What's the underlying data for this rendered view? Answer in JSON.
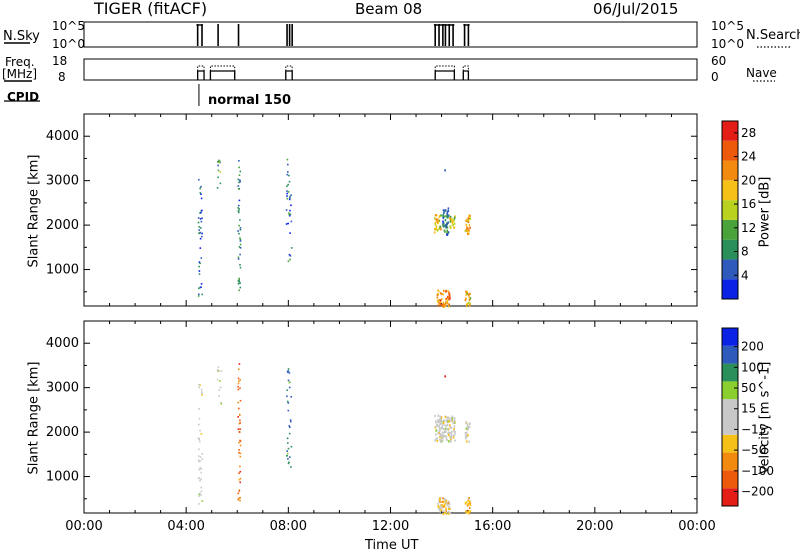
{
  "header": {
    "title": "TIGER (fitACF)",
    "beam": "Beam 08",
    "date": "06/Jul/2015"
  },
  "strip1": {
    "left_label": "N.Sky",
    "right_label": "N.Search",
    "left_ticks": [
      "10^5",
      "10^0"
    ],
    "right_ticks": [
      "10^5",
      "10^0"
    ]
  },
  "strip2": {
    "left_label_1": "Freq.",
    "left_label_2": "[MHz]",
    "right_label": "Nave",
    "left_ticks": [
      "18",
      "8"
    ],
    "right_ticks": [
      "60",
      "0"
    ]
  },
  "cpid": {
    "label": "CPID",
    "mode": "normal 150"
  },
  "colors": {
    "power_scale": [
      "#0a22e6",
      "#2e5bbb",
      "#2a8f5a",
      "#4aa23a",
      "#b9d11f",
      "#f5c018",
      "#f28a10",
      "#ee5a0c",
      "#e41e16"
    ],
    "velocity_scale": [
      "#e41e16",
      "#ee5a0c",
      "#f28a10",
      "#f5c018",
      "#c8c8c8",
      "#c8c8c8",
      "#8bcf2e",
      "#2a8f5a",
      "#2e5bbb",
      "#0a22e6"
    ]
  },
  "chart_data": [
    {
      "type": "heatmap",
      "name": "power_panel",
      "xlabel": "Time UT",
      "ylabel": "Slant Range [km]",
      "xlim": [
        0,
        24
      ],
      "ylim": [
        180,
        4500
      ],
      "y_ticks": [
        1000,
        2000,
        3000,
        4000
      ],
      "colorbar": {
        "label": "Power [dB]",
        "ticks": [
          "4",
          "8",
          "12",
          "16",
          "20",
          "24",
          "28"
        ],
        "range": [
          0,
          30
        ]
      },
      "echo_clusters": [
        {
          "t_start": 4.45,
          "t_end": 4.6,
          "range_start": 250,
          "range_end": 3100,
          "value": 6
        },
        {
          "t_start": 5.2,
          "t_end": 5.35,
          "range_start": 2650,
          "range_end": 3500,
          "value": 10
        },
        {
          "t_start": 6.0,
          "t_end": 6.1,
          "range_start": 450,
          "range_end": 3550,
          "value": 8
        },
        {
          "t_start": 7.9,
          "t_end": 8.1,
          "range_start": 1150,
          "range_end": 3500,
          "value": 7
        },
        {
          "t_start": 13.7,
          "t_end": 13.95,
          "range_start": 1850,
          "range_end": 2250,
          "value": 18
        },
        {
          "t_start": 14.0,
          "t_end": 14.25,
          "range_start": 1800,
          "range_end": 2400,
          "value": 8
        },
        {
          "t_start": 14.3,
          "t_end": 14.5,
          "range_start": 1900,
          "range_end": 2250,
          "value": 16
        },
        {
          "t_start": 14.9,
          "t_end": 15.1,
          "range_start": 1800,
          "range_end": 2250,
          "value": 20
        },
        {
          "t_start": 13.8,
          "t_end": 14.3,
          "range_start": 180,
          "range_end": 550,
          "value": 22
        },
        {
          "t_start": 14.9,
          "t_end": 15.1,
          "range_start": 180,
          "range_end": 550,
          "value": 18
        },
        {
          "t_start": 14.1,
          "t_end": 14.15,
          "range_start": 3250,
          "range_end": 3330,
          "value": 6
        }
      ]
    },
    {
      "type": "heatmap",
      "name": "velocity_panel",
      "xlabel": "Time UT",
      "ylabel": "Slant Range [km]",
      "xlim": [
        0,
        24
      ],
      "ylim": [
        180,
        4500
      ],
      "x_ticks": [
        "00:00",
        "04:00",
        "08:00",
        "12:00",
        "16:00",
        "20:00",
        "00:00"
      ],
      "y_ticks": [
        1000,
        2000,
        3000,
        4000
      ],
      "colorbar": {
        "label": "Velocity [m s^-1]",
        "ticks": [
          "200",
          "100",
          "50",
          "15",
          "-15",
          "-50",
          "-100",
          "-200"
        ],
        "range": [
          -250,
          250
        ]
      },
      "echo_clusters": [
        {
          "t_start": 4.45,
          "t_end": 4.6,
          "range_start": 250,
          "range_end": 3100,
          "value": -5
        },
        {
          "t_start": 5.2,
          "t_end": 5.35,
          "range_start": 2650,
          "range_end": 3500,
          "value": 30
        },
        {
          "t_start": 6.0,
          "t_end": 6.1,
          "range_start": 450,
          "range_end": 3550,
          "value": -150
        },
        {
          "t_start": 7.9,
          "t_end": 8.1,
          "range_start": 1150,
          "range_end": 3500,
          "value": 150
        },
        {
          "t_start": 13.7,
          "t_end": 14.5,
          "range_start": 1800,
          "range_end": 2400,
          "value": 0
        },
        {
          "t_start": 14.9,
          "t_end": 15.1,
          "range_start": 1800,
          "range_end": 2250,
          "value": 5
        },
        {
          "t_start": 13.8,
          "t_end": 14.3,
          "range_start": 180,
          "range_end": 550,
          "value": -60
        },
        {
          "t_start": 14.9,
          "t_end": 15.1,
          "range_start": 180,
          "range_end": 550,
          "value": -80
        },
        {
          "t_start": 14.1,
          "t_end": 14.15,
          "range_start": 3250,
          "range_end": 3330,
          "value": -200
        }
      ]
    }
  ]
}
